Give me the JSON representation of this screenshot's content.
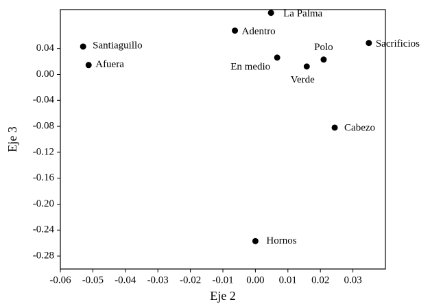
{
  "chart_data": {
    "type": "scatter",
    "x_label": "Eje 2",
    "y_label": "Eje 3",
    "labels": [
      "La Palma",
      "Adentro",
      "Santiaguillo",
      "Afuera",
      "En medio",
      "Verde",
      "Polo",
      "Sacrificios",
      "Cabezo",
      "Hornos"
    ],
    "x": [
      0.0048,
      -0.0063,
      -0.053,
      -0.0513,
      0.0067,
      0.0158,
      0.021,
      0.0349,
      0.0244,
      0.0
    ],
    "y": [
      0.095,
      0.0676,
      0.043,
      0.0145,
      0.026,
      0.0123,
      0.023,
      0.0485,
      -0.082,
      -0.257
    ],
    "color": "#000000",
    "xlim": [
      -0.06,
      0.04
    ],
    "ylim": [
      -0.3,
      0.1
    ],
    "xticks": [
      -0.06,
      -0.05,
      -0.04,
      -0.03,
      -0.02,
      -0.01,
      {
        "value": 0,
        "label": "0.00"
      },
      0.01,
      0.02,
      0.03
    ],
    "yticks": [
      0.04,
      {
        "value": 0,
        "label": "0.00"
      },
      -0.04,
      -0.08,
      -0.12,
      -0.16,
      {
        "value": -0.2,
        "label": "-0.20"
      },
      -0.24,
      -0.28
    ]
  }
}
